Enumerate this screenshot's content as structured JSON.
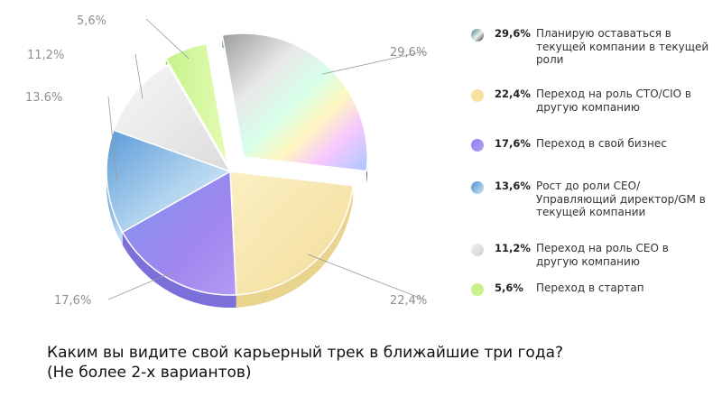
{
  "chart_data": {
    "type": "pie",
    "slices": [
      {
        "value": 29.6,
        "label": "29,6%",
        "color": "#c4c4c4"
      },
      {
        "value": 22.4,
        "label": "22,4%",
        "color": "#f6e3a6"
      },
      {
        "value": 17.6,
        "label": "17,6%",
        "color": "#9b8ef0"
      },
      {
        "value": 13.6,
        "label": "13.6%",
        "color": "#8cbfe6"
      },
      {
        "value": 11.2,
        "label": "11,2%",
        "color": "#ededed"
      },
      {
        "value": 5.6,
        "label": "5,6%",
        "color": "#d4f79a"
      }
    ]
  },
  "legend": [
    {
      "pct": "29,6%",
      "text": "Планирую оставаться в текущей компании в текущей роли",
      "color": "#5e9a96"
    },
    {
      "pct": "22,4%",
      "text": "Переход на роль CTO/CIO в другую компанию",
      "color": "#f8e0a0"
    },
    {
      "pct": "17,6%",
      "text": "Переход в свой бизнес",
      "color": "#a08af0"
    },
    {
      "pct": "13,6%",
      "text": "Рост до роли CEO/ Управляющий директор/GM в текущей компании",
      "color": "#7db3e3"
    },
    {
      "pct": "11,2%",
      "text": "Переход на роль CEO в другую компанию",
      "color": "#e3e3e3"
    },
    {
      "pct": "5,6%",
      "text": "Переход в стартап",
      "color": "#c9f28a"
    }
  ],
  "question": {
    "line1": "Каким вы видите свой карьерный трек в ближайшие три года?",
    "line2": "(Не более 2-х вариантов)"
  }
}
